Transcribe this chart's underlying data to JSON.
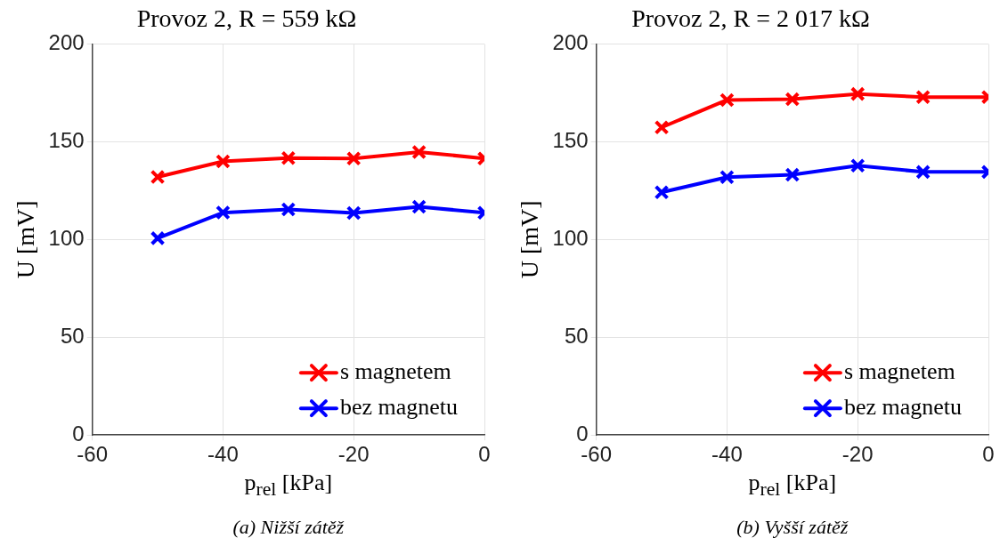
{
  "chart_data": [
    {
      "type": "line",
      "title": "Provoz 2, R = 559 kΩ",
      "xlabel": "p$_{rel}$ [kPa]",
      "ylabel": "U [mV]",
      "annotations": [
        "(a) Nižší zátěž"
      ],
      "x": [
        -50,
        -40,
        -30,
        -20,
        -10,
        0
      ],
      "series": [
        {
          "name": "s magnetem",
          "color": "#ff0000",
          "values": [
            132,
            140,
            141.7,
            141.5,
            144.8,
            141.5
          ]
        },
        {
          "name": "bez magnetu",
          "color": "#0000ff",
          "values": [
            100.7,
            113.8,
            115.4,
            113.6,
            116.8,
            113.7
          ]
        }
      ],
      "xlim": [
        -60,
        0
      ],
      "xticks": [
        -60,
        -40,
        -20,
        0
      ],
      "ylim": [
        0,
        200
      ],
      "yticks": [
        0,
        50,
        100,
        150,
        200
      ],
      "grid": true,
      "legend": "bottom right",
      "marker": "cross",
      "line_style": "solid"
    },
    {
      "type": "line",
      "title": "Provoz 2, R = 2 017 kΩ",
      "xlabel": "p$_{rel}$ [kPa]",
      "ylabel": "U [mV]",
      "annotations": [
        "(b) Vyšší zátěž"
      ],
      "x": [
        -50,
        -40,
        -30,
        -20,
        -10,
        0
      ],
      "series": [
        {
          "name": "s magnetem",
          "color": "#ff0000",
          "values": [
            157.4,
            171.4,
            171.8,
            174.5,
            172.9,
            172.9
          ]
        },
        {
          "name": "bez magnetu",
          "color": "#0000ff",
          "values": [
            124.2,
            131.9,
            133.2,
            137.8,
            134.6,
            134.6
          ]
        }
      ],
      "xlim": [
        -60,
        0
      ],
      "xticks": [
        -60,
        -40,
        -20,
        0
      ],
      "ylim": [
        0,
        200
      ],
      "yticks": [
        0,
        50,
        100,
        150,
        200
      ],
      "grid": true,
      "legend": "bottom right",
      "marker": "cross",
      "line_style": "solid"
    }
  ]
}
